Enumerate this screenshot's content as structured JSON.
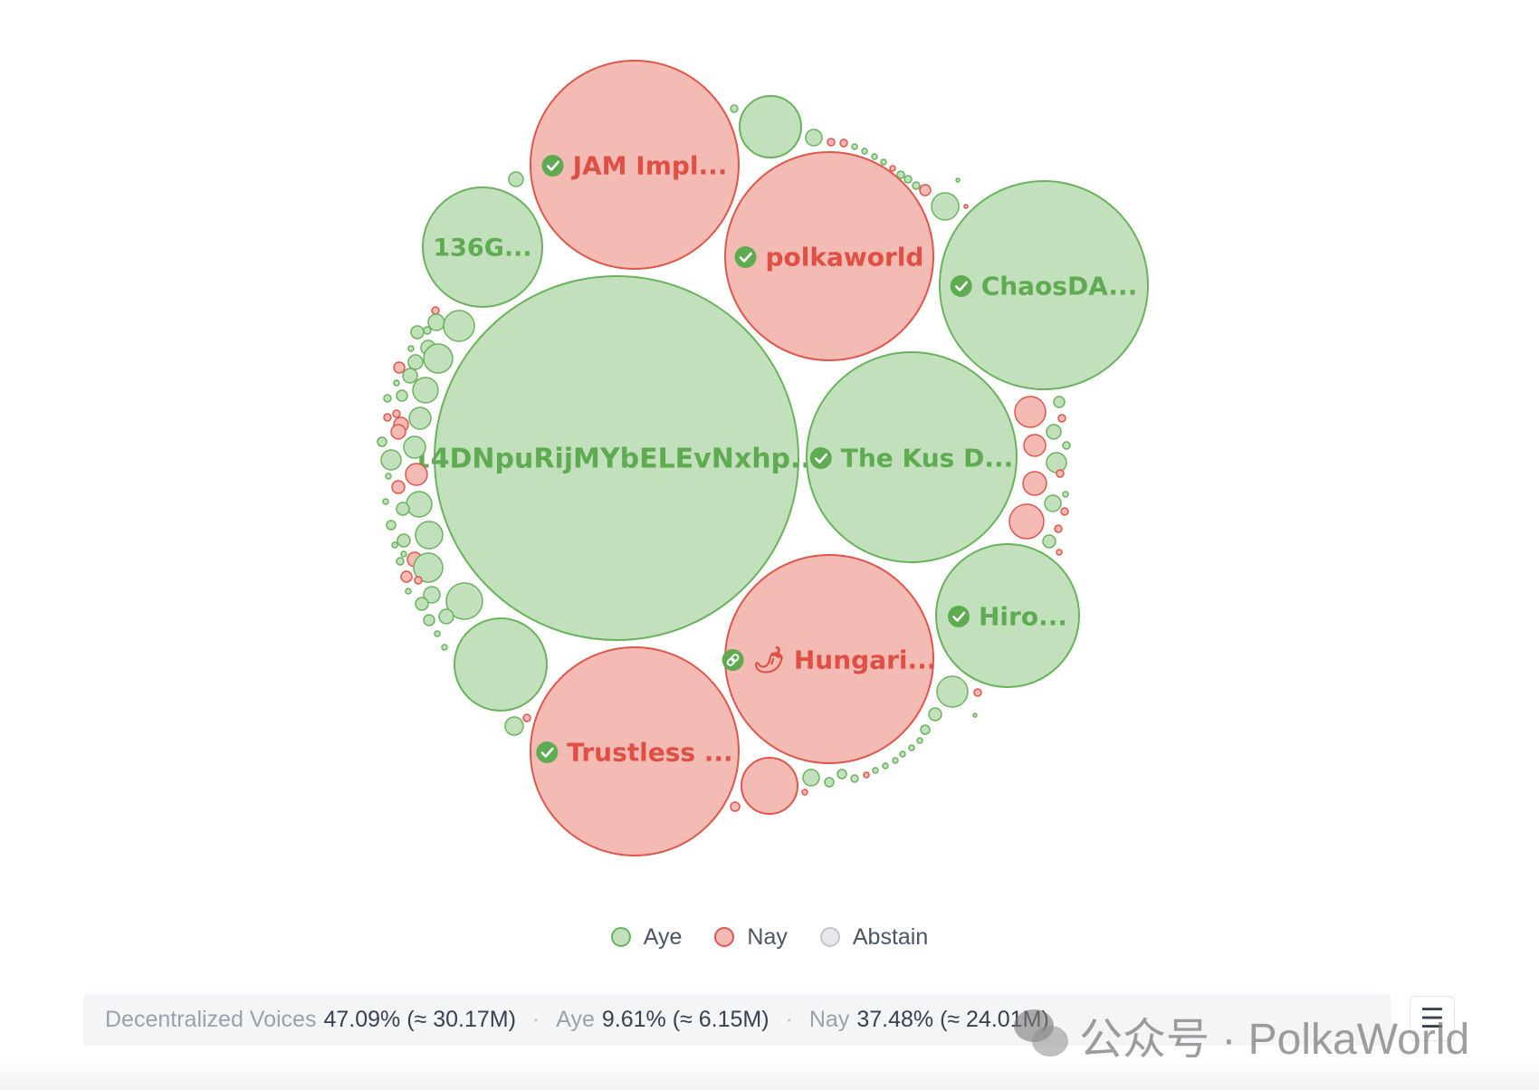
{
  "colors": {
    "aye": {
      "fill": "#c3e0bd",
      "stroke": "#69b35c",
      "text": "#5fab52"
    },
    "nay": {
      "fill": "#f4bab4",
      "stroke": "#e0564a",
      "text": "#df4f43"
    },
    "abstain": {
      "fill": "#e6e8eb",
      "stroke": "#c3c7cd"
    },
    "badge": "#5fab52"
  },
  "chart_data": {
    "type": "bubble",
    "bubbles": [
      {
        "name": "14DNpuRijMYbELEvNxhp...",
        "vote": "aye",
        "size": 185,
        "icon": "none"
      },
      {
        "name": "JAM Impl...",
        "vote": "nay",
        "size": 106,
        "icon": "verified-icon"
      },
      {
        "name": "polkaworld",
        "vote": "nay",
        "size": 106,
        "icon": "verified-icon"
      },
      {
        "name": "ChaosDA...",
        "vote": "aye",
        "size": 106,
        "icon": "verified-icon"
      },
      {
        "name": "The Kus D...",
        "vote": "aye",
        "size": 107,
        "icon": "verified-icon"
      },
      {
        "name": "Hungari...",
        "vote": "nay",
        "size": 106,
        "icon": "link-icon",
        "emoji": "🌶"
      },
      {
        "name": "Trustless ...",
        "vote": "nay",
        "size": 106,
        "icon": "verified-icon"
      },
      {
        "name": "Hiro...",
        "vote": "aye",
        "size": 73,
        "icon": "verified-icon"
      },
      {
        "name": "136G...",
        "vote": "aye",
        "size": 61,
        "icon": "none"
      },
      {
        "name": "",
        "vote": "aye",
        "size": 47
      },
      {
        "name": "",
        "vote": "aye",
        "size": 31
      },
      {
        "name": "",
        "vote": "nay",
        "size": 29
      }
    ]
  },
  "legend": {
    "items": [
      {
        "label": "Aye",
        "key": "aye"
      },
      {
        "label": "Nay",
        "key": "nay"
      },
      {
        "label": "Abstain",
        "key": "abstain"
      }
    ]
  },
  "summary": {
    "decentralized_label": "Decentralized Voices",
    "decentralized_value": "47.09% (≈ 30.17M)",
    "aye_label": "Aye",
    "aye_value": "9.61% (≈ 6.15M)",
    "nay_label": "Nay",
    "nay_value": "37.48% (≈ 24.01M)",
    "separator": "·"
  },
  "menu": {
    "icon": "menu-icon",
    "glyph": "☰"
  },
  "watermark": {
    "text": "公众号 · PolkaWorld",
    "icon": "wechat-icon"
  }
}
